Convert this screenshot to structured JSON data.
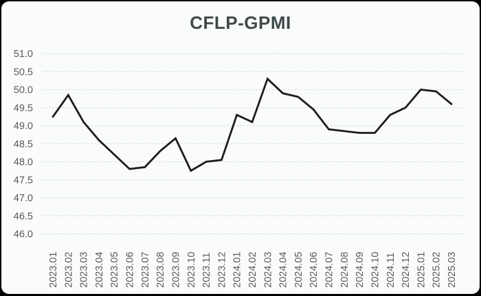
{
  "chart_data": {
    "type": "line",
    "title": "CFLP-GPMI",
    "xlabel": "",
    "ylabel": "",
    "legend": "none",
    "grid": "horizontal dashed",
    "ylim": [
      46.0,
      51.0
    ],
    "ytick_step": 0.5,
    "y_tick_labels": [
      "51.0",
      "50.5",
      "50.0",
      "49.5",
      "49.0",
      "48.5",
      "48.0",
      "47.5",
      "47.0",
      "46.5",
      "46.0"
    ],
    "categories": [
      "2023.01",
      "2023.02",
      "2023.03",
      "2023.04",
      "2023.05",
      "2023.06",
      "2023.07",
      "2023.08",
      "2023.09",
      "2023.10",
      "2023.11",
      "2023.12",
      "2024.01",
      "2024.02",
      "2024.03",
      "2024.04",
      "2024.05",
      "2024.06",
      "2024.07",
      "2024.08",
      "2024.09",
      "2024.10",
      "2024.11",
      "2024.12",
      "2025.01",
      "2025.02",
      "2025.03"
    ],
    "values": [
      49.25,
      49.85,
      49.1,
      48.6,
      48.2,
      47.8,
      47.85,
      48.3,
      48.65,
      47.75,
      48.0,
      48.05,
      49.3,
      49.1,
      50.3,
      49.9,
      49.8,
      49.45,
      48.9,
      48.85,
      48.8,
      48.8,
      49.3,
      49.5,
      50.0,
      49.95,
      49.6
    ],
    "colors": {
      "outer_background": "#000000",
      "card_background": "#fafbfb",
      "title": "#3f4a4a",
      "axis_labels": "#595959",
      "gridlines": "#d8e2e1",
      "series_line": "#1c1c1c"
    }
  }
}
